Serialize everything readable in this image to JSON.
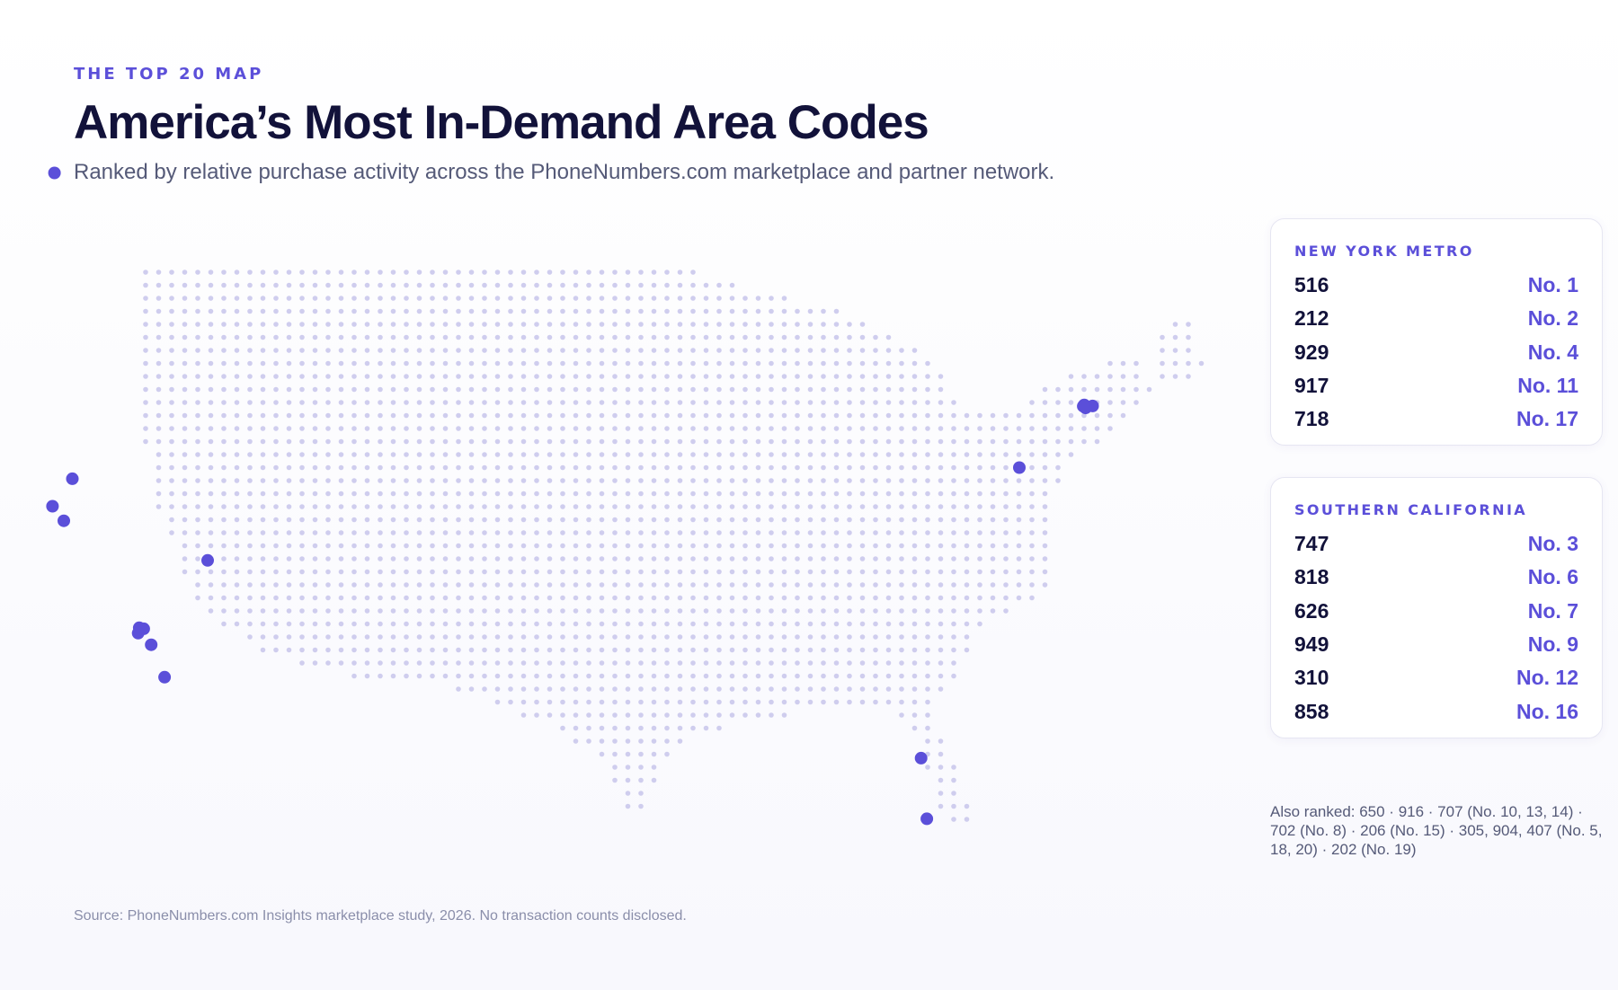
{
  "header": {
    "eyebrow": "THE TOP 20 MAP",
    "title": "America’s Most In-Demand Area Codes",
    "subtitle": "Ranked by relative purchase activity across the PhoneNumbers.com marketplace and partner network."
  },
  "colors": {
    "accent": "#5b4fd9",
    "marker": "#5b4fd9",
    "map_dot": "#cfcdee",
    "title": "#12123a",
    "text_muted": "#555a78"
  },
  "map": {
    "kind": "dot-matrix map of the contiguous United States",
    "markers": [
      {
        "lon": -122.33,
        "lat": 47.61
      },
      {
        "lon": -122.42,
        "lat": 37.77
      },
      {
        "lon": -121.89,
        "lat": 37.34
      },
      {
        "lon": -121.49,
        "lat": 38.58
      },
      {
        "lon": -115.14,
        "lat": 36.17
      },
      {
        "lon": -118.35,
        "lat": 34.18
      },
      {
        "lon": -118.14,
        "lat": 34.15
      },
      {
        "lon": -118.4,
        "lat": 34.02
      },
      {
        "lon": -117.79,
        "lat": 33.68
      },
      {
        "lon": -117.16,
        "lat": 32.72
      },
      {
        "lon": -73.99,
        "lat": 40.76
      },
      {
        "lon": -73.93,
        "lat": 40.67
      },
      {
        "lon": -73.6,
        "lat": 40.73
      },
      {
        "lon": -74.04,
        "lat": 40.72
      },
      {
        "lon": -77.04,
        "lat": 38.91
      },
      {
        "lon": -81.65,
        "lat": 30.33
      },
      {
        "lon": -81.38,
        "lat": 28.54
      },
      {
        "lon": -80.19,
        "lat": 25.77
      }
    ]
  },
  "regions": [
    {
      "title": "NEW YORK METRO",
      "items": [
        {
          "code": "516",
          "rank": "No. 1"
        },
        {
          "code": "212",
          "rank": "No. 2"
        },
        {
          "code": "929",
          "rank": "No. 4"
        },
        {
          "code": "917",
          "rank": "No. 11"
        },
        {
          "code": "718",
          "rank": "No. 17"
        }
      ]
    },
    {
      "title": "SOUTHERN CALIFORNIA",
      "items": [
        {
          "code": "747",
          "rank": "No. 3"
        },
        {
          "code": "818",
          "rank": "No. 6"
        },
        {
          "code": "626",
          "rank": "No. 7"
        },
        {
          "code": "949",
          "rank": "No. 9"
        },
        {
          "code": "310",
          "rank": "No. 12"
        },
        {
          "code": "858",
          "rank": "No. 16"
        }
      ]
    }
  ],
  "also_ranked": "Also ranked: 650 · 916 · 707 (No. 10, 13, 14) · 702 (No. 8) · 206 (No. 15) · 305, 904, 407 (No. 5, 18, 20) · 202 (No. 19)",
  "source": "Source: PhoneNumbers.com Insights marketplace study, 2026. No transaction counts disclosed."
}
